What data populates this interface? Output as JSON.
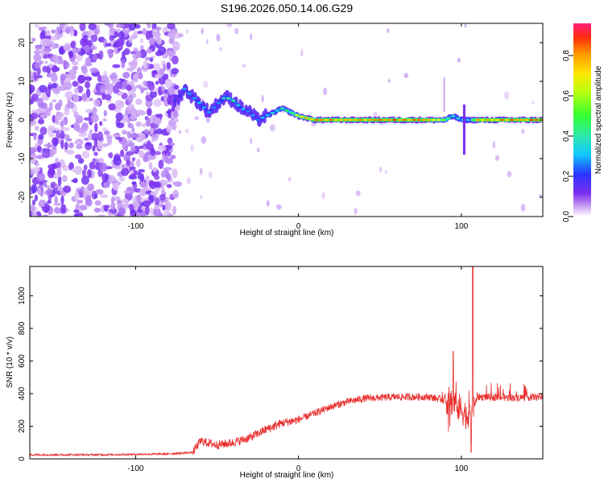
{
  "title": "S196.2026.050.14.06.G29",
  "chart_data": [
    {
      "type": "heatmap",
      "name": "spectrogram",
      "xlabel": "Height of straight line (km)",
      "ylabel": "Frequency (Hz)",
      "xlim": [
        -165,
        150
      ],
      "ylim": [
        -25,
        25
      ],
      "xticks": [
        -100,
        0,
        100
      ],
      "yticks": [
        -20,
        -10,
        0,
        10,
        20
      ],
      "colorbar": {
        "label": "Normalized spectral amplitude",
        "range": [
          0,
          0.96
        ],
        "ticks": [
          "0.0",
          "0.2",
          "0.4",
          "0.6",
          "0.8"
        ],
        "tick_values": [
          0.0,
          0.2,
          0.4,
          0.6,
          0.8
        ]
      },
      "ridge": {
        "description_x_km": [
          -75,
          -70,
          -65,
          -60,
          -55,
          -50,
          -45,
          -40,
          -35,
          -30,
          -25,
          -20,
          -15,
          -10,
          -5,
          0,
          10,
          20,
          40,
          60,
          80,
          90,
          95,
          100,
          105,
          110,
          130,
          150
        ],
        "frequency_hz": [
          5,
          8,
          6,
          4,
          2,
          4,
          6,
          5,
          3,
          2,
          0,
          1,
          2,
          3,
          2,
          1,
          0,
          0,
          0,
          0,
          0,
          0,
          1,
          0,
          0,
          0,
          0,
          0
        ],
        "amplitude": [
          0.2,
          0.3,
          0.3,
          0.35,
          0.3,
          0.3,
          0.4,
          0.45,
          0.35,
          0.3,
          0.3,
          0.35,
          0.4,
          0.45,
          0.5,
          0.7,
          0.85,
          0.9,
          0.9,
          0.9,
          0.85,
          0.6,
          0.4,
          0.4,
          0.3,
          0.85,
          0.9,
          0.9
        ]
      }
    },
    {
      "type": "line",
      "name": "snr",
      "xlabel": "Height of straight line (km)",
      "ylabel": "SNR (10 * v/v)",
      "xlim": [
        -165,
        150
      ],
      "ylim": [
        0,
        1180
      ],
      "xticks": [
        -100,
        0,
        100
      ],
      "yticks": [
        0,
        200,
        400,
        600,
        800,
        1000
      ],
      "color": "#e8312f",
      "envelope": {
        "x_km": [
          -165,
          -120,
          -80,
          -65,
          -60,
          -50,
          -40,
          -30,
          -20,
          -10,
          0,
          10,
          20,
          30,
          40,
          60,
          80,
          90,
          95,
          100,
          105,
          110,
          130,
          150
        ],
        "snr": [
          25,
          25,
          30,
          40,
          110,
          85,
          100,
          130,
          180,
          220,
          240,
          280,
          320,
          350,
          370,
          380,
          380,
          360,
          350,
          300,
          250,
          380,
          375,
          380
        ]
      },
      "spikes": [
        {
          "x_km": 95,
          "snr": 660
        },
        {
          "x_km": 107,
          "snr": 1180
        },
        {
          "x_km": 106,
          "snr": 40
        }
      ]
    }
  ]
}
